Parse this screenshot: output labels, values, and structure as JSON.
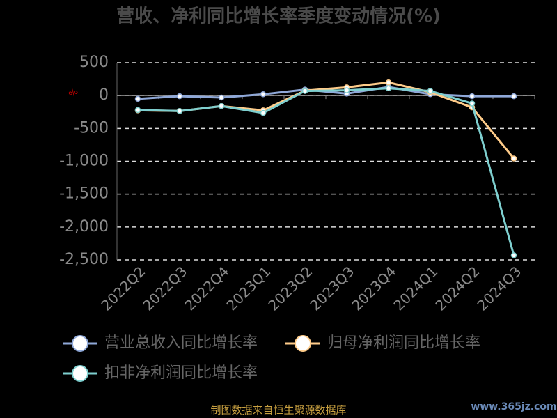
{
  "chart_data": {
    "type": "line",
    "title": "营收、净利同比增长率季度变动情况(%)",
    "y_unit": "%",
    "categories": [
      "2022Q2",
      "2022Q3",
      "2022Q4",
      "2023Q1",
      "2023Q2",
      "2023Q3",
      "2023Q4",
      "2024Q1",
      "2024Q2",
      "2024Q3"
    ],
    "series": [
      {
        "name": "营业总收入同比增长率",
        "color": "#8fa8d8",
        "values": [
          -50,
          -10,
          -30,
          20,
          90,
          30,
          130,
          20,
          -10,
          -10
        ]
      },
      {
        "name": "归母净利润同比增长率",
        "color": "#ffcc8a",
        "values": [
          -225,
          -235,
          -160,
          -225,
          75,
          125,
          200,
          50,
          -180,
          -957
        ]
      },
      {
        "name": "扣非净利润同比增长率",
        "color": "#7ecfcf",
        "values": [
          -220,
          -235,
          -160,
          -265,
          70,
          80,
          110,
          70,
          -120,
          -2430
        ]
      }
    ],
    "ylim": [
      -2500,
      500
    ],
    "yticks": [
      {
        "value": -2500,
        "label": "-2,500"
      },
      {
        "value": -2000,
        "label": "-2,000"
      },
      {
        "value": -1500,
        "label": "-1,500"
      },
      {
        "value": -1000,
        "label": "-1,000"
      },
      -500,
      0,
      500
    ],
    "grid": true,
    "legend": "bottom",
    "source": "制图数据来自恒生聚源数据库",
    "watermark": "www.365jz.com"
  }
}
